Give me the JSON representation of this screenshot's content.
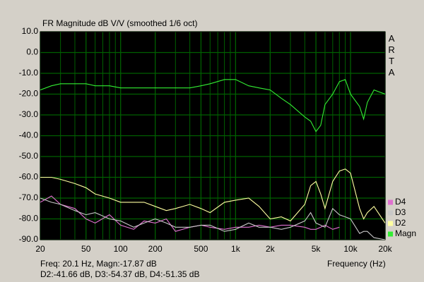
{
  "chart_data": {
    "type": "line",
    "title": "FR Magnitude dB V/V (smoothed 1/6 oct)",
    "side_label": "ARTA",
    "xlabel": "Frequency (Hz)",
    "cursor_text": [
      "Freq: 20.1 Hz, Magn:-17.87 dB",
      "D2:-41.66 dB, D3:-54.37 dB, D4:-51.35 dB"
    ],
    "xscale": "log",
    "grid": true,
    "background": "#000000",
    "grid_color": "#006000",
    "legend": "right",
    "xlim": [
      20,
      20000
    ],
    "ylim": [
      -90,
      10
    ],
    "xticks": [
      20,
      50,
      100,
      200,
      500,
      {
        "value": 1000,
        "label": "1k"
      },
      {
        "value": 2000,
        "label": "2k"
      },
      {
        "value": 5000,
        "label": "5k"
      },
      {
        "value": 10000,
        "label": "10k"
      },
      {
        "value": 20000,
        "label": "20k"
      }
    ],
    "xminorticks": [
      30,
      40,
      60,
      70,
      80,
      90,
      300,
      400,
      600,
      700,
      800,
      900,
      3000,
      4000,
      6000,
      7000,
      8000,
      9000
    ],
    "yticks": [
      {
        "value": 10,
        "label": "10.0"
      },
      {
        "value": 0,
        "label": "0.0"
      },
      {
        "value": -10,
        "label": "-10.0"
      },
      {
        "value": -20,
        "label": "-20.0"
      },
      {
        "value": -30,
        "label": "-30.0"
      },
      {
        "value": -40,
        "label": "-40.0"
      },
      {
        "value": -50,
        "label": "-50.0"
      },
      {
        "value": -60,
        "label": "-60.0"
      },
      {
        "value": -70,
        "label": "-70.0"
      },
      {
        "value": -80,
        "label": "-80.0"
      },
      {
        "value": -90,
        "label": "-90.0"
      }
    ],
    "x": [
      20,
      25,
      30,
      40,
      50,
      60,
      80,
      100,
      130,
      160,
      200,
      250,
      300,
      400,
      500,
      600,
      800,
      1000,
      1300,
      1600,
      2000,
      2500,
      3000,
      4000,
      4500,
      5000,
      5500,
      6000,
      7000,
      8000,
      9000,
      10000,
      12000,
      13000,
      14000,
      16000,
      20000
    ],
    "series": [
      {
        "name": "Magn",
        "color": "#33ee33",
        "values": [
          -18,
          -16,
          -15,
          -15,
          -15,
          -16,
          -16,
          -17,
          -17,
          -17,
          -17,
          -17,
          -17,
          -17,
          -16,
          -15,
          -13,
          -13,
          -16,
          -17,
          -18,
          -22,
          -25,
          -31,
          -33,
          -38,
          -35,
          -25,
          -20,
          -14,
          -13,
          -20,
          -26,
          -32,
          -24,
          -18,
          -20
        ]
      },
      {
        "name": "D2",
        "color": "#ffffa0",
        "values": [
          -60,
          -60,
          -61,
          -63,
          -65,
          -68,
          -70,
          -72,
          -72,
          -72,
          -74,
          -76,
          -75,
          -73,
          -75,
          -77,
          -72,
          -71,
          -70,
          -74,
          -80,
          -79,
          -81,
          -73,
          -64,
          -62,
          -68,
          -75,
          -62,
          -57,
          -56,
          -58,
          -75,
          -80,
          -77,
          -74,
          -82
        ]
      },
      {
        "name": "D3",
        "color": "#c8c8c8",
        "values": [
          -70,
          -72,
          -73,
          -76,
          -78,
          -77,
          -80,
          -81,
          -84,
          -82,
          -80,
          -82,
          -84,
          -84,
          -83,
          -83,
          -86,
          -85,
          -82,
          -84,
          -84,
          -85,
          -84,
          -81,
          -77,
          -82,
          -83,
          -84,
          -75,
          -78,
          -79,
          -80,
          -87,
          -86,
          -86,
          -89,
          -90
        ]
      },
      {
        "name": "D4",
        "color": "#e070d0",
        "values": [
          -72,
          -69,
          -73,
          -75,
          -80,
          -82,
          -78,
          -83,
          -85,
          -81,
          -82,
          -80,
          -86,
          -84,
          -83,
          -84,
          -85,
          -84,
          -84,
          -83,
          -84,
          -83,
          -83,
          -84,
          -85,
          -85,
          -84,
          -83,
          -85,
          -84,
          null,
          null,
          null,
          null,
          null,
          null,
          null
        ]
      }
    ]
  }
}
